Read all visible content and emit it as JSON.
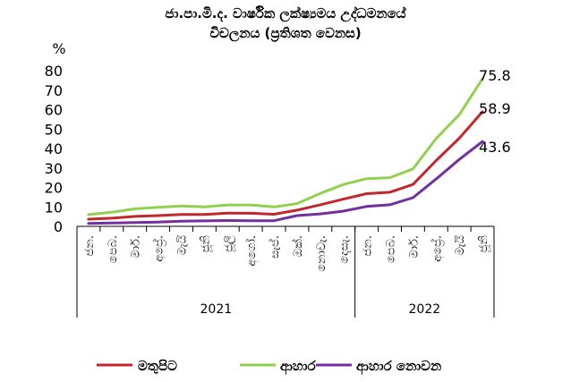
{
  "chart_data": {
    "type": "line",
    "title_lines": [
      "ජා.පා.මි.ද. වාර්ෂික ලක්ෂ්‍යමය උද්ධමනයේ",
      "විචලනය (ප්‍රතිශත වෙනස)"
    ],
    "ylabel": "%",
    "ylim": [
      0,
      80
    ],
    "yticks": [
      "0",
      "10",
      "20",
      "30",
      "40",
      "50",
      "60",
      "70",
      "80"
    ],
    "categories": [
      "ජන.",
      "පෙබ.",
      "මාර්.",
      "අප්‍රේ.",
      "මැයි",
      "ජූනි",
      "ජූලි",
      "අගෝ.",
      "සැප්.",
      "ඔක්.",
      "නොවැ.",
      "දෙසැ.",
      "ජන.",
      "පෙබ.",
      "මාර්.",
      "අප්‍රේ.",
      "මැයි",
      "ජූනි"
    ],
    "year_groups": [
      {
        "label": "2021",
        "count": 12
      },
      {
        "label": "2022",
        "count": 6
      }
    ],
    "series": [
      {
        "name": "මතුපිට",
        "color": "#c0282d",
        "values": [
          3.7,
          4.2,
          5.1,
          5.5,
          6.1,
          6.1,
          6.8,
          6.7,
          6.2,
          8.3,
          11.1,
          14.0,
          16.8,
          17.5,
          21.5,
          33.8,
          45.3,
          58.9
        ],
        "end_label": "58.9"
      },
      {
        "name": "ආහාර",
        "color": "#92d050",
        "values": [
          6.0,
          7.2,
          9.0,
          9.8,
          10.5,
          10.0,
          11.0,
          11.0,
          10.0,
          11.7,
          16.9,
          21.5,
          24.5,
          25.0,
          29.5,
          45.1,
          57.4,
          75.8
        ],
        "end_label": "75.8"
      },
      {
        "name": "ආහාර නොවන",
        "color": "#7030a0",
        "values": [
          1.5,
          1.7,
          2.0,
          2.2,
          2.6,
          2.8,
          3.0,
          2.9,
          2.9,
          5.5,
          6.4,
          7.8,
          10.2,
          11.1,
          14.7,
          24.3,
          34.4,
          43.6
        ],
        "end_label": "43.6"
      }
    ]
  }
}
